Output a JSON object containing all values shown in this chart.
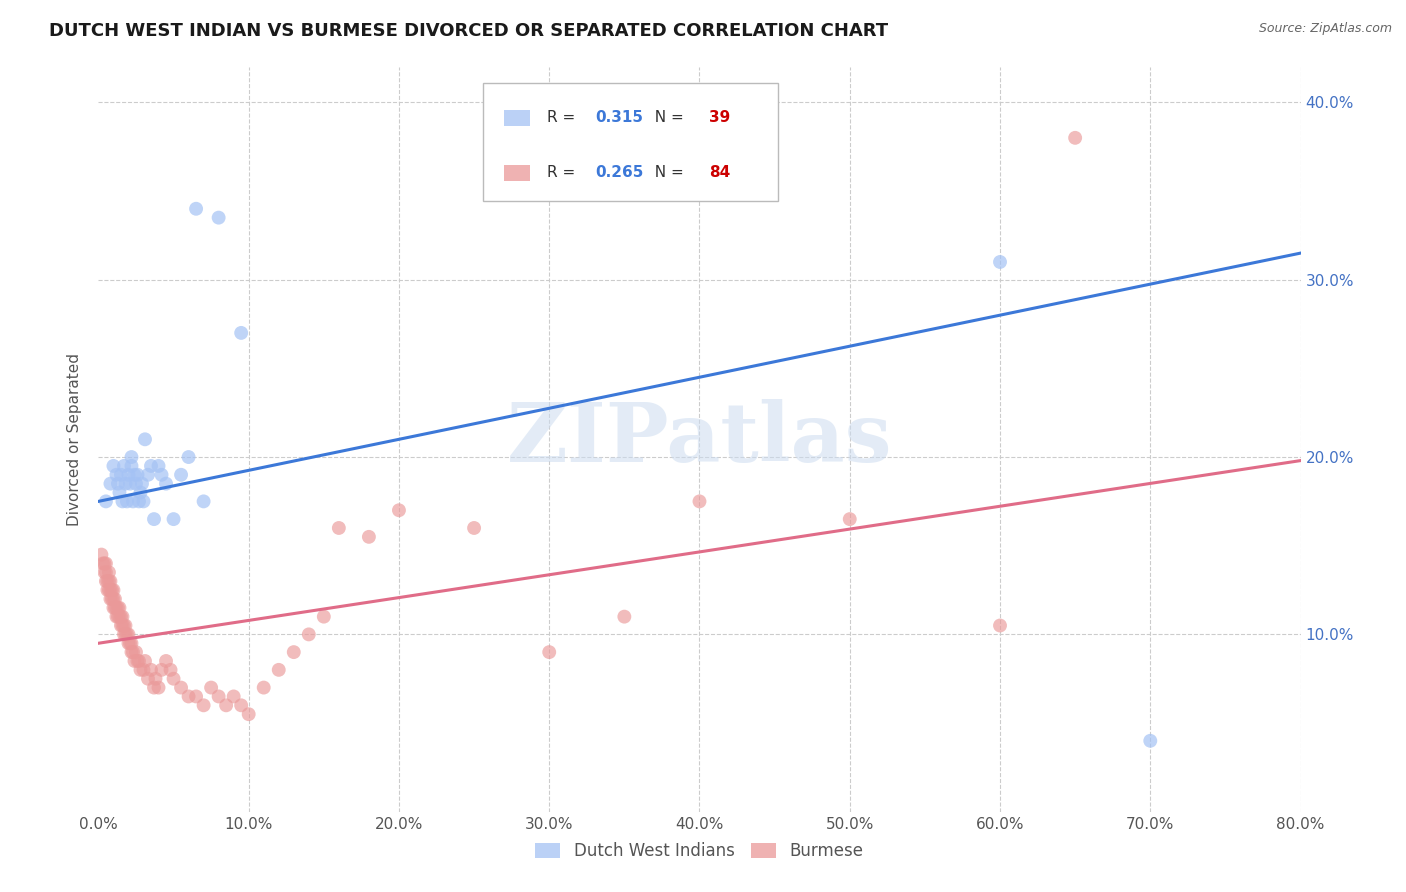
{
  "title": "DUTCH WEST INDIAN VS BURMESE DIVORCED OR SEPARATED CORRELATION CHART",
  "source": "Source: ZipAtlas.com",
  "ylabel": "Divorced or Separated",
  "x_label_bottom_legend": [
    "Dutch West Indians",
    "Burmese"
  ],
  "xlim": [
    0.0,
    0.8
  ],
  "ylim": [
    0.0,
    0.42
  ],
  "xticks": [
    0.0,
    0.1,
    0.2,
    0.3,
    0.4,
    0.5,
    0.6,
    0.7,
    0.8
  ],
  "yticks": [
    0.0,
    0.1,
    0.2,
    0.3,
    0.4
  ],
  "xtick_labels": [
    "0.0%",
    "10.0%",
    "20.0%",
    "30.0%",
    "40.0%",
    "50.0%",
    "60.0%",
    "70.0%",
    "80.0%"
  ],
  "right_ytick_labels": [
    "10.0%",
    "20.0%",
    "30.0%",
    "40.0%"
  ],
  "right_yticks": [
    0.1,
    0.2,
    0.3,
    0.4
  ],
  "legend_blue_R": "0.315",
  "legend_blue_N": "39",
  "legend_pink_R": "0.265",
  "legend_pink_N": "84",
  "blue_color": "#a4c2f4",
  "pink_color": "#ea9999",
  "blue_line_color": "#3c78d8",
  "pink_line_color": "#e06c88",
  "grid_color": "#cccccc",
  "background_color": "#ffffff",
  "watermark": "ZIPatlas",
  "blue_line_x0": 0.0,
  "blue_line_y0": 0.175,
  "blue_line_x1": 0.8,
  "blue_line_y1": 0.315,
  "pink_line_x0": 0.0,
  "pink_line_y0": 0.095,
  "pink_line_x1": 0.8,
  "pink_line_y1": 0.198,
  "blue_scatter_x": [
    0.005,
    0.008,
    0.01,
    0.012,
    0.013,
    0.014,
    0.015,
    0.016,
    0.017,
    0.018,
    0.019,
    0.02,
    0.021,
    0.022,
    0.022,
    0.023,
    0.024,
    0.025,
    0.026,
    0.027,
    0.028,
    0.029,
    0.03,
    0.031,
    0.033,
    0.035,
    0.037,
    0.04,
    0.042,
    0.045,
    0.05,
    0.055,
    0.06,
    0.065,
    0.07,
    0.08,
    0.095,
    0.6,
    0.7
  ],
  "blue_scatter_y": [
    0.175,
    0.185,
    0.195,
    0.19,
    0.185,
    0.18,
    0.19,
    0.175,
    0.195,
    0.185,
    0.175,
    0.19,
    0.185,
    0.2,
    0.195,
    0.175,
    0.19,
    0.185,
    0.19,
    0.175,
    0.18,
    0.185,
    0.175,
    0.21,
    0.19,
    0.195,
    0.165,
    0.195,
    0.19,
    0.185,
    0.165,
    0.19,
    0.2,
    0.34,
    0.175,
    0.335,
    0.27,
    0.31,
    0.04
  ],
  "pink_scatter_x": [
    0.002,
    0.003,
    0.004,
    0.004,
    0.005,
    0.005,
    0.005,
    0.006,
    0.006,
    0.007,
    0.007,
    0.007,
    0.008,
    0.008,
    0.008,
    0.009,
    0.009,
    0.01,
    0.01,
    0.01,
    0.011,
    0.011,
    0.012,
    0.012,
    0.013,
    0.013,
    0.014,
    0.014,
    0.015,
    0.015,
    0.016,
    0.016,
    0.017,
    0.017,
    0.018,
    0.018,
    0.019,
    0.02,
    0.02,
    0.021,
    0.022,
    0.022,
    0.023,
    0.024,
    0.025,
    0.026,
    0.027,
    0.028,
    0.03,
    0.031,
    0.033,
    0.035,
    0.037,
    0.038,
    0.04,
    0.042,
    0.045,
    0.048,
    0.05,
    0.055,
    0.06,
    0.065,
    0.07,
    0.075,
    0.08,
    0.085,
    0.09,
    0.095,
    0.1,
    0.11,
    0.12,
    0.13,
    0.14,
    0.15,
    0.16,
    0.18,
    0.2,
    0.25,
    0.3,
    0.35,
    0.4,
    0.5,
    0.6,
    0.65
  ],
  "pink_scatter_y": [
    0.145,
    0.14,
    0.135,
    0.14,
    0.135,
    0.13,
    0.14,
    0.125,
    0.13,
    0.125,
    0.13,
    0.135,
    0.125,
    0.12,
    0.13,
    0.12,
    0.125,
    0.115,
    0.12,
    0.125,
    0.115,
    0.12,
    0.11,
    0.115,
    0.11,
    0.115,
    0.11,
    0.115,
    0.105,
    0.11,
    0.105,
    0.11,
    0.1,
    0.105,
    0.1,
    0.105,
    0.1,
    0.095,
    0.1,
    0.095,
    0.09,
    0.095,
    0.09,
    0.085,
    0.09,
    0.085,
    0.085,
    0.08,
    0.08,
    0.085,
    0.075,
    0.08,
    0.07,
    0.075,
    0.07,
    0.08,
    0.085,
    0.08,
    0.075,
    0.07,
    0.065,
    0.065,
    0.06,
    0.07,
    0.065,
    0.06,
    0.065,
    0.06,
    0.055,
    0.07,
    0.08,
    0.09,
    0.1,
    0.11,
    0.16,
    0.155,
    0.17,
    0.16,
    0.09,
    0.11,
    0.175,
    0.165,
    0.105,
    0.38
  ]
}
